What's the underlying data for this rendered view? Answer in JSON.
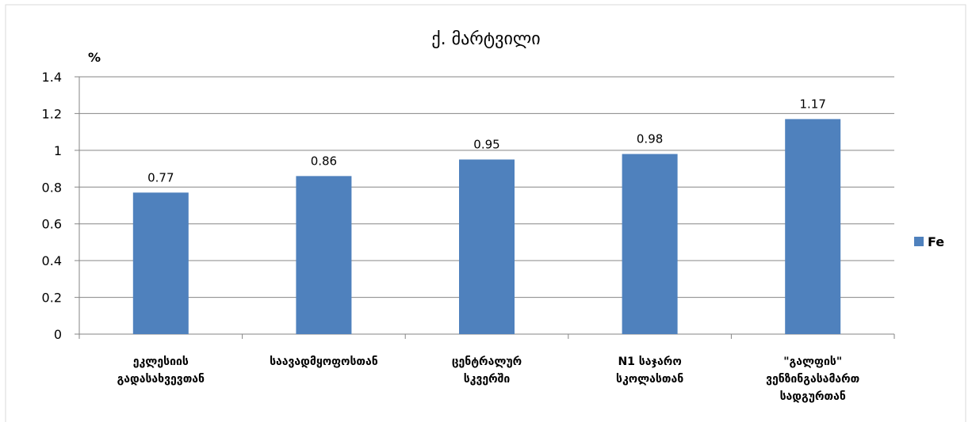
{
  "chart_data": {
    "type": "bar",
    "title": "ქ. მარტვილი",
    "ylabel": "%",
    "ylim": [
      0,
      1.4
    ],
    "yticks": [
      "0",
      "0.2",
      "0.4",
      "0.6",
      "0.8",
      "1",
      "1.2",
      "1.4"
    ],
    "grid": true,
    "legend_position": "right",
    "categories": [
      [
        "ეკლესიის",
        "გადასახვევთან"
      ],
      [
        "საავადმყოფოსთან"
      ],
      [
        "ცენტრალურ",
        "სკვერში"
      ],
      [
        "N1 საჯარო",
        "სკოლასთან"
      ],
      [
        "\"გალფის\"",
        "ვენზინგასამართ",
        "სადგურთან"
      ]
    ],
    "series": [
      {
        "name": "Fe",
        "values": [
          0.77,
          0.86,
          0.95,
          0.98,
          1.17
        ],
        "labels": [
          "0.77",
          "0.86",
          "0.95",
          "0.98",
          "1.17"
        ]
      }
    ],
    "colors": {
      "bar": "#4F81BD",
      "grid": "#868686",
      "axis": "#868686",
      "frame": "#d9d9d9"
    }
  }
}
